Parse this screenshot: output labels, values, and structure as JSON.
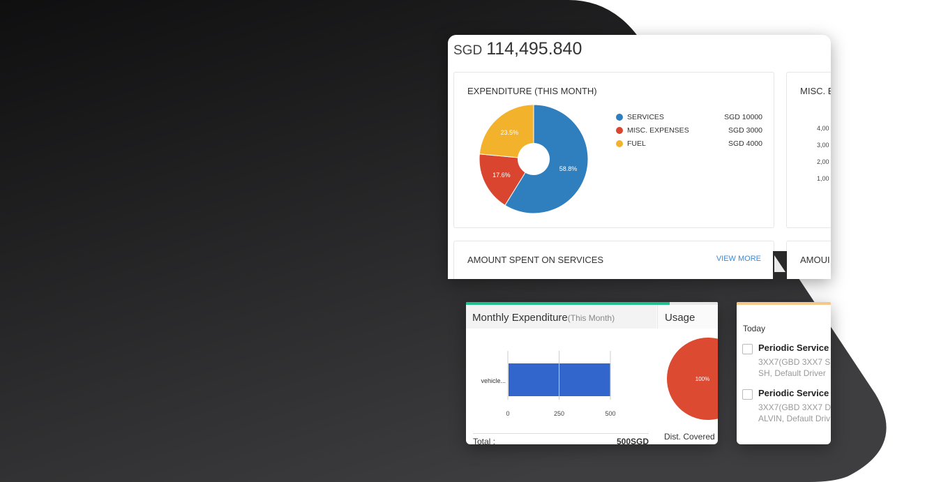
{
  "total": {
    "currency": "SGD",
    "amount": "114,495.840"
  },
  "expenditure": {
    "title": "EXPENDITURE (THIS MONTH)",
    "legend": [
      {
        "label": "SERVICES",
        "value": "SGD 10000",
        "color": "#2f7ebd"
      },
      {
        "label": "MISC. EXPENSES",
        "value": "SGD 3000",
        "color": "#d9452e"
      },
      {
        "label": "FUEL",
        "value": "SGD 4000",
        "color": "#f3b22c"
      }
    ],
    "pie_labels": [
      "58.8%",
      "17.6%",
      "23.5%"
    ]
  },
  "misc_panel": {
    "title": "MISC. E",
    "ticks": [
      "4,00",
      "3,00",
      "2,00",
      "1,00"
    ]
  },
  "services_panel": {
    "title": "AMOUNT SPENT ON SERVICES",
    "view_more": "VIEW MORE"
  },
  "amount_panel": {
    "title": "AMOUI"
  },
  "monthly": {
    "title": "Monthly Expenditure",
    "subtitle": "(This Month)",
    "total_label": "Total :",
    "total_value": "500SGD",
    "bar_color": "#3366cc"
  },
  "usage": {
    "title": "Usage",
    "pie_label": "100%",
    "dist_label": "Dist. Covered",
    "color": "#dc4a32"
  },
  "today": {
    "label": "Today",
    "tasks": [
      {
        "title": "Periodic Service",
        "line1": "3XX7(GBD 3XX7 S)",
        "line2": "SH, Default Driver"
      },
      {
        "title": "Periodic Service",
        "line1": "3XX7(GBD 3XX7 D)",
        "line2": "ALVIN, Default Driv"
      }
    ]
  },
  "chart_data": [
    {
      "type": "pie",
      "title": "EXPENDITURE (THIS MONTH)",
      "categories": [
        "SERVICES",
        "MISC. EXPENSES",
        "FUEL"
      ],
      "values": [
        10000,
        3000,
        4000
      ],
      "colors": [
        "#2f7ebd",
        "#d9452e",
        "#f3b22c"
      ],
      "donut": true
    },
    {
      "type": "bar",
      "orientation": "horizontal",
      "categories": [
        "vehicle..."
      ],
      "values": [
        500
      ],
      "xlim": [
        0,
        500
      ],
      "xticks": [
        "0",
        "250",
        "500"
      ]
    },
    {
      "type": "pie",
      "values": [
        100
      ],
      "labels": [
        "100%"
      ]
    }
  ]
}
